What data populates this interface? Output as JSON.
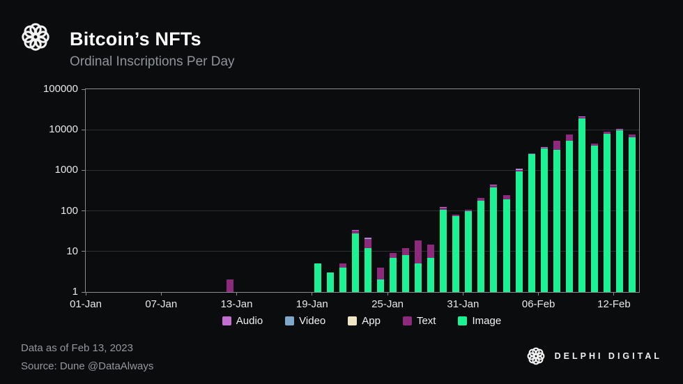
{
  "header": {
    "title": "Bitcoin’s NFTs",
    "subtitle": "Ordinal Inscriptions Per Day"
  },
  "footer": {
    "data_as_of": "Data as of Feb 13, 2023",
    "source": "Source: Dune @DataAlways",
    "brand": "DELPHI DIGITAL"
  },
  "colors": {
    "background": "#0b0c0e",
    "plot_border": "#8b8b90",
    "gridline": "#2e2f34",
    "axis_text": "#e8e8ea",
    "title": "#ffffff",
    "subtitle": "#90939a",
    "footer_text": "#96969e"
  },
  "chart_data": {
    "type": "bar",
    "stacked": true,
    "y_scale": "log",
    "title": "Ordinal Inscriptions Per Day",
    "xlabel": "",
    "ylabel": "",
    "ylim": [
      1,
      100000
    ],
    "grid": "horizontal",
    "legend_position": "bottom",
    "y_ticks": [
      "1",
      "10",
      "100",
      "1000",
      "10000",
      "100000"
    ],
    "x_ticks": [
      {
        "label": "01-Jan",
        "day": 0
      },
      {
        "label": "07-Jan",
        "day": 6
      },
      {
        "label": "13-Jan",
        "day": 12
      },
      {
        "label": "19-Jan",
        "day": 18
      },
      {
        "label": "25-Jan",
        "day": 24
      },
      {
        "label": "31-Jan",
        "day": 30
      },
      {
        "label": "06-Feb",
        "day": 36
      },
      {
        "label": "12-Feb",
        "day": 42
      }
    ],
    "x_domain_days": 44,
    "stack_order_bottom_to_top": [
      "Image",
      "Text",
      "App",
      "Video",
      "Audio"
    ],
    "categories": [
      "12-Jan",
      "19-Jan",
      "20-Jan",
      "21-Jan",
      "22-Jan",
      "23-Jan",
      "24-Jan",
      "25-Jan",
      "26-Jan",
      "27-Jan",
      "28-Jan",
      "29-Jan",
      "30-Jan",
      "31-Jan",
      "01-Feb",
      "02-Feb",
      "03-Feb",
      "04-Feb",
      "05-Feb",
      "06-Feb",
      "07-Feb",
      "08-Feb",
      "09-Feb",
      "10-Feb",
      "11-Feb",
      "12-Feb",
      "13-Feb"
    ],
    "day_index": [
      11,
      18,
      19,
      20,
      21,
      22,
      23,
      24,
      25,
      26,
      27,
      28,
      29,
      30,
      31,
      32,
      33,
      34,
      35,
      36,
      37,
      38,
      39,
      40,
      41,
      42,
      43
    ],
    "series": [
      {
        "name": "Audio",
        "color": "#c36fd1",
        "values": [
          0,
          0,
          0,
          0,
          1,
          1,
          0,
          0,
          0,
          0,
          0,
          2,
          0,
          0,
          0,
          3,
          0,
          3,
          0,
          5,
          0,
          0,
          40,
          0,
          0,
          20,
          0
        ]
      },
      {
        "name": "Video",
        "color": "#7fa8c9",
        "values": [
          0,
          0,
          0,
          0,
          1,
          1,
          0,
          0,
          0,
          0,
          0,
          1,
          0,
          0,
          0,
          2,
          0,
          5,
          0,
          15,
          0,
          0,
          60,
          0,
          0,
          40,
          0
        ]
      },
      {
        "name": "App",
        "color": "#f1e6c3",
        "values": [
          0,
          0,
          0,
          0,
          0,
          0,
          0,
          0,
          0,
          0,
          0,
          0,
          0,
          0,
          0,
          0,
          0,
          0,
          0,
          0,
          0,
          0,
          0,
          0,
          0,
          0,
          0
        ]
      },
      {
        "name": "Text",
        "color": "#8e2a7d",
        "values": [
          2,
          0,
          0,
          1,
          4,
          8,
          2,
          2,
          4,
          14,
          8,
          15,
          5,
          10,
          28,
          55,
          50,
          95,
          170,
          200,
          2150,
          2300,
          1600,
          500,
          1300,
          600,
          1100
        ]
      },
      {
        "name": "Image",
        "color": "#1bf294",
        "values": [
          0,
          5,
          3,
          4,
          28,
          12,
          2,
          7,
          8,
          5,
          7,
          105,
          76,
          97,
          178,
          375,
          190,
          940,
          2500,
          3400,
          3150,
          5400,
          18800,
          4100,
          7800,
          9500,
          6400
        ]
      }
    ]
  }
}
